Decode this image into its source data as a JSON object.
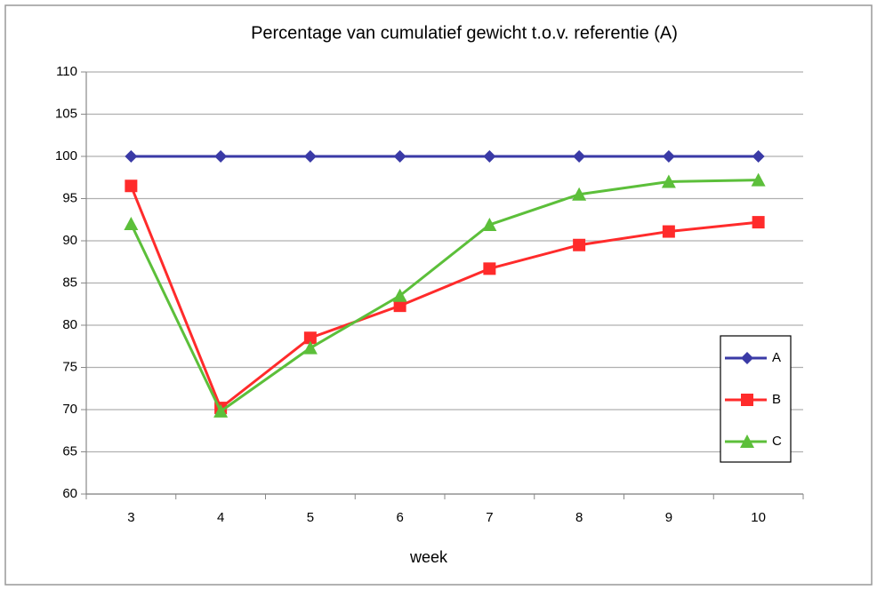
{
  "chart_data": {
    "type": "line",
    "title": "Percentage van cumulatief gewicht t.o.v. referentie (A)",
    "x_label": "week",
    "categories": [
      3,
      4,
      5,
      6,
      7,
      8,
      9,
      10
    ],
    "series": [
      {
        "name": "A",
        "color": "#3a3aa6",
        "marker": "diamond",
        "values": [
          100,
          100,
          100,
          100,
          100,
          100,
          100,
          100
        ]
      },
      {
        "name": "B",
        "color": "#ff2b2b",
        "marker": "square",
        "values": [
          96.5,
          70.2,
          78.5,
          82.3,
          86.7,
          89.5,
          91.1,
          92.2
        ]
      },
      {
        "name": "C",
        "color": "#5cbf3a",
        "marker": "triangle",
        "values": [
          92.0,
          69.8,
          77.3,
          83.5,
          91.9,
          95.5,
          97.0,
          97.2
        ]
      }
    ],
    "ylim": [
      60,
      110
    ],
    "yticks": [
      60,
      65,
      70,
      75,
      80,
      85,
      90,
      95,
      100,
      105,
      110
    ],
    "grid": true,
    "legend": "right"
  }
}
